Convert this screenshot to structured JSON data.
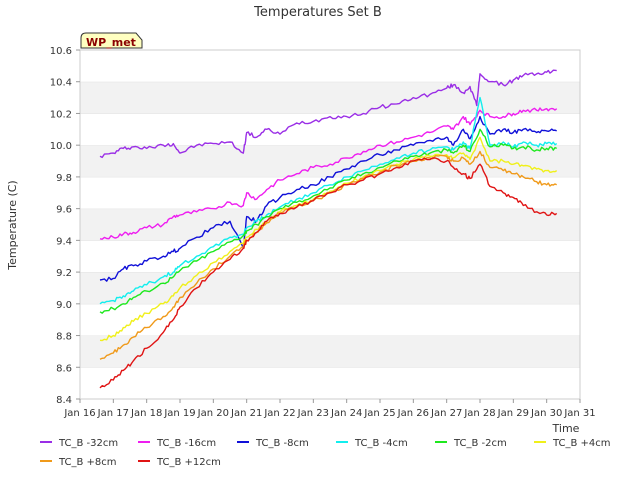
{
  "chart_data": {
    "type": "line",
    "title": "Temperatures Set B",
    "xlabel": "Time",
    "ylabel": "Temperature (C)",
    "ylim": [
      8.4,
      10.6
    ],
    "xlim": [
      16,
      31
    ],
    "yticks": [
      8.4,
      8.6,
      8.8,
      9.0,
      9.2,
      9.4,
      9.6,
      9.8,
      10.0,
      10.2,
      10.4,
      10.6
    ],
    "ytick_labels": [
      "8.4",
      "8.6",
      "8.8",
      "9.0",
      "9.2",
      "9.4",
      "9.6",
      "9.8",
      "10.0",
      "10.2",
      "10.4",
      "10.6"
    ],
    "xticks": [
      16,
      17,
      18,
      19,
      20,
      21,
      22,
      23,
      24,
      25,
      26,
      27,
      28,
      29,
      30,
      31
    ],
    "xtick_labels": [
      "Jan 16",
      "Jan 17",
      "Jan 18",
      "Jan 19",
      "Jan 20",
      "Jan 21",
      "Jan 22",
      "Jan 23",
      "Jan 24",
      "Jan 25",
      "Jan 26",
      "Jan 27",
      "Jan 28",
      "Jan 29",
      "Jan 30",
      "Jan 31"
    ],
    "grid": "horizontal bands",
    "annotation": "WP_met",
    "legend_position": "bottom",
    "series": [
      {
        "name": "TC_B -32cm",
        "color": "#9a2ee6",
        "x": [
          16.6,
          17.0,
          17.3,
          17.6,
          18.0,
          18.5,
          18.8,
          19.0,
          19.5,
          20.0,
          20.5,
          20.9,
          21.0,
          21.3,
          21.6,
          22.0,
          22.5,
          23.0,
          23.5,
          24.0,
          24.5,
          25.0,
          25.5,
          26.0,
          26.5,
          27.0,
          27.2,
          27.5,
          27.7,
          27.9,
          28.0,
          28.3,
          28.7,
          29.0,
          29.3,
          29.7,
          30.0,
          30.3
        ],
        "y": [
          9.93,
          9.95,
          9.98,
          9.99,
          9.98,
          10.0,
          10.01,
          9.95,
          10.0,
          10.01,
          10.02,
          9.95,
          10.08,
          10.05,
          10.1,
          10.07,
          10.14,
          10.15,
          10.18,
          10.18,
          10.2,
          10.24,
          10.26,
          10.3,
          10.32,
          10.36,
          10.38,
          10.33,
          10.37,
          10.25,
          10.45,
          10.4,
          10.38,
          10.41,
          10.44,
          10.45,
          10.46,
          10.47
        ]
      },
      {
        "name": "TC_B -16cm",
        "color": "#ee1ef0",
        "x": [
          16.6,
          17.0,
          17.3,
          17.6,
          18.0,
          18.5,
          18.8,
          19.0,
          19.5,
          20.0,
          20.5,
          20.9,
          21.0,
          21.3,
          21.6,
          22.0,
          22.5,
          23.0,
          23.5,
          24.0,
          24.5,
          25.0,
          25.5,
          26.0,
          26.5,
          27.0,
          27.2,
          27.5,
          27.7,
          28.0,
          28.3,
          28.7,
          29.0,
          29.3,
          29.7,
          30.0,
          30.3
        ],
        "y": [
          9.41,
          9.42,
          9.44,
          9.45,
          9.48,
          9.5,
          9.55,
          9.56,
          9.58,
          9.6,
          9.64,
          9.62,
          9.7,
          9.66,
          9.72,
          9.78,
          9.82,
          9.86,
          9.88,
          9.92,
          9.96,
          10.0,
          10.02,
          10.05,
          10.08,
          10.12,
          10.1,
          10.18,
          10.13,
          10.22,
          10.18,
          10.18,
          10.2,
          10.22,
          10.22,
          10.23,
          10.23
        ]
      },
      {
        "name": "TC_B -8cm",
        "color": "#1010d8",
        "x": [
          16.6,
          17.0,
          17.3,
          17.6,
          18.0,
          18.5,
          18.8,
          19.0,
          19.5,
          20.0,
          20.5,
          20.9,
          21.0,
          21.3,
          21.6,
          22.0,
          22.5,
          23.0,
          23.5,
          24.0,
          24.5,
          25.0,
          25.5,
          26.0,
          26.5,
          27.0,
          27.2,
          27.5,
          27.7,
          28.0,
          28.3,
          28.7,
          29.0,
          29.3,
          29.7,
          30.0,
          30.3
        ],
        "y": [
          9.15,
          9.16,
          9.22,
          9.24,
          9.27,
          9.3,
          9.33,
          9.35,
          9.42,
          9.48,
          9.52,
          9.35,
          9.55,
          9.52,
          9.62,
          9.67,
          9.72,
          9.75,
          9.8,
          9.85,
          9.9,
          9.94,
          9.97,
          10.0,
          10.03,
          10.05,
          10.0,
          10.1,
          10.04,
          10.18,
          10.07,
          10.1,
          10.08,
          10.1,
          10.08,
          10.09,
          10.09
        ]
      },
      {
        "name": "TC_B -4cm",
        "color": "#12eeee",
        "x": [
          16.6,
          17.0,
          17.3,
          17.6,
          18.0,
          18.5,
          18.8,
          19.0,
          19.5,
          20.0,
          20.5,
          20.9,
          21.0,
          21.3,
          21.6,
          22.0,
          22.5,
          23.0,
          23.5,
          24.0,
          24.5,
          25.0,
          25.5,
          26.0,
          26.5,
          27.0,
          27.2,
          27.5,
          27.7,
          28.0,
          28.3,
          28.7,
          29.0,
          29.3,
          29.7,
          30.0,
          30.3
        ],
        "y": [
          9.0,
          9.02,
          9.05,
          9.08,
          9.12,
          9.17,
          9.2,
          9.24,
          9.3,
          9.36,
          9.42,
          9.44,
          9.48,
          9.52,
          9.56,
          9.61,
          9.66,
          9.7,
          9.75,
          9.8,
          9.84,
          9.88,
          9.92,
          9.95,
          9.97,
          9.99,
          9.97,
          10.02,
          9.98,
          10.3,
          10.0,
          10.02,
          9.99,
          10.02,
          10.0,
          10.01,
          10.01
        ]
      },
      {
        "name": "TC_B -2cm",
        "color": "#1ee81e",
        "x": [
          16.6,
          17.0,
          17.3,
          17.6,
          18.0,
          18.5,
          18.8,
          19.0,
          19.5,
          20.0,
          20.5,
          20.9,
          21.0,
          21.3,
          21.6,
          22.0,
          22.5,
          23.0,
          23.5,
          24.0,
          24.5,
          25.0,
          25.5,
          26.0,
          26.5,
          27.0,
          27.2,
          27.5,
          27.7,
          28.0,
          28.3,
          28.7,
          29.0,
          29.3,
          29.7,
          30.0,
          30.3
        ],
        "y": [
          8.95,
          8.97,
          9.0,
          9.04,
          9.08,
          9.13,
          9.17,
          9.21,
          9.27,
          9.33,
          9.39,
          9.43,
          9.46,
          9.5,
          9.55,
          9.6,
          9.64,
          9.68,
          9.73,
          9.78,
          9.82,
          9.86,
          9.9,
          9.93,
          9.95,
          9.97,
          9.95,
          10.0,
          9.96,
          10.1,
          9.99,
          10.0,
          9.98,
          9.99,
          9.97,
          9.98,
          9.98
        ]
      },
      {
        "name": "TC_B +4cm",
        "color": "#f0f01a",
        "x": [
          16.6,
          17.0,
          17.3,
          17.6,
          18.0,
          18.5,
          18.8,
          19.0,
          19.5,
          20.0,
          20.5,
          20.9,
          21.0,
          21.3,
          21.6,
          22.0,
          22.5,
          23.0,
          23.5,
          24.0,
          24.5,
          25.0,
          25.5,
          26.0,
          26.5,
          27.0,
          27.2,
          27.5,
          27.7,
          28.0,
          28.3,
          28.7,
          29.0,
          29.3,
          29.7,
          30.0,
          30.3
        ],
        "y": [
          8.77,
          8.8,
          8.85,
          8.89,
          8.94,
          9.0,
          9.05,
          9.1,
          9.18,
          9.26,
          9.33,
          9.38,
          9.42,
          9.47,
          9.52,
          9.58,
          9.62,
          9.66,
          9.71,
          9.76,
          9.8,
          9.84,
          9.88,
          9.91,
          9.93,
          9.94,
          9.92,
          9.95,
          9.91,
          10.05,
          9.9,
          9.9,
          9.88,
          9.87,
          9.85,
          9.84,
          9.84
        ]
      },
      {
        "name": "TC_B +8cm",
        "color": "#f09a1a",
        "x": [
          16.6,
          17.0,
          17.3,
          17.6,
          18.0,
          18.5,
          18.8,
          19.0,
          19.5,
          20.0,
          20.5,
          20.9,
          21.0,
          21.3,
          21.6,
          22.0,
          22.5,
          23.0,
          23.5,
          24.0,
          24.5,
          25.0,
          25.5,
          26.0,
          26.5,
          27.0,
          27.2,
          27.5,
          27.7,
          28.0,
          28.3,
          28.7,
          29.0,
          29.3,
          29.7,
          30.0,
          30.3
        ],
        "y": [
          8.65,
          8.69,
          8.74,
          8.79,
          8.85,
          8.92,
          8.98,
          9.04,
          9.13,
          9.22,
          9.3,
          9.36,
          9.4,
          9.45,
          9.51,
          9.57,
          9.61,
          9.65,
          9.7,
          9.75,
          9.79,
          9.83,
          9.87,
          9.9,
          9.92,
          9.93,
          9.9,
          9.92,
          9.88,
          9.96,
          9.86,
          9.84,
          9.82,
          9.8,
          9.77,
          9.75,
          9.75
        ]
      },
      {
        "name": "TC_B +12cm",
        "color": "#e01414",
        "x": [
          16.6,
          17.0,
          17.3,
          17.6,
          18.0,
          18.5,
          18.8,
          19.0,
          19.5,
          20.0,
          20.5,
          20.9,
          21.0,
          21.3,
          21.6,
          22.0,
          22.5,
          23.0,
          23.5,
          24.0,
          24.5,
          25.0,
          25.5,
          26.0,
          26.5,
          27.0,
          27.2,
          27.5,
          27.7,
          28.0,
          28.3,
          28.7,
          29.0,
          29.3,
          29.7,
          30.0,
          30.3
        ],
        "y": [
          8.47,
          8.52,
          8.58,
          8.64,
          8.72,
          8.82,
          8.9,
          8.98,
          9.1,
          9.2,
          9.28,
          9.35,
          9.4,
          9.45,
          9.52,
          9.57,
          9.61,
          9.65,
          9.7,
          9.75,
          9.78,
          9.82,
          9.86,
          9.9,
          9.91,
          9.9,
          9.86,
          9.82,
          9.79,
          9.88,
          9.74,
          9.7,
          9.67,
          9.62,
          9.58,
          9.56,
          9.57
        ]
      }
    ]
  }
}
